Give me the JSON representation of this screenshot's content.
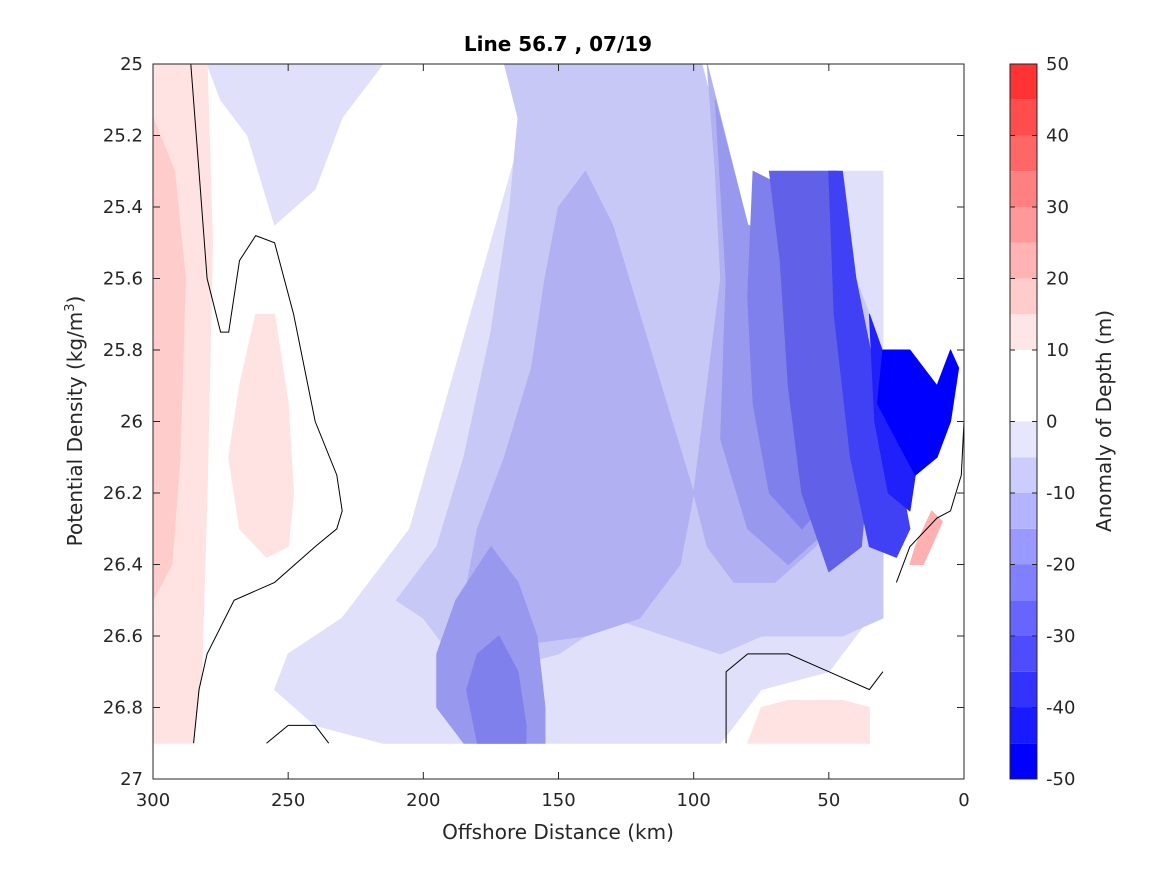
{
  "chart_data": {
    "type": "heatmap",
    "subtype": "filled-contour",
    "title": "Line 56.7 , 07/19",
    "xlabel": "Offshore Distance (km)",
    "ylabel_main": "Potential Density (kg/m",
    "ylabel_sup": "3",
    "ylabel_end": ")",
    "colorbar_label": "Anomaly of Depth (m)",
    "xlim": [
      300,
      0
    ],
    "x_reversed": true,
    "ylim": [
      27,
      25
    ],
    "y_reversed": true,
    "xticks": [
      300,
      250,
      200,
      150,
      100,
      50,
      0
    ],
    "yticks": [
      25,
      25.2,
      25.4,
      25.6,
      25.8,
      26,
      26.2,
      26.4,
      26.6,
      26.8,
      27
    ],
    "ytick_labels": [
      "25",
      "25.2",
      "25.4",
      "25.6",
      "25.8",
      "26",
      "26.2",
      "26.4",
      "26.6",
      "26.8",
      "27"
    ],
    "colorbar_ticks": [
      50,
      40,
      30,
      20,
      10,
      0,
      -10,
      -20,
      -30,
      -40,
      -50
    ],
    "colorbar_levels": [
      -50,
      -45,
      -40,
      -35,
      -30,
      -25,
      -20,
      -15,
      -10,
      -5,
      0,
      5,
      10,
      15,
      20,
      25,
      30,
      35,
      40,
      45,
      50
    ],
    "colorbar_colors": [
      "#0000ff",
      "#1a1aff",
      "#3333ff",
      "#4d4dff",
      "#6666ff",
      "#8080ff",
      "#9999ff",
      "#b3b3ff",
      "#ccccff",
      "#e6e6ff",
      "#ffffff",
      "#ffffff",
      "#ffe6e6",
      "#ffcccc",
      "#ffb3b3",
      "#ff9999",
      "#ff8080",
      "#ff6666",
      "#ff4d4d",
      "#ff3333",
      "#ff1a1a"
    ],
    "regions": [
      {
        "level": -5,
        "color": "#e0e0fb",
        "points": [
          [
            255,
            25
          ],
          [
            170,
            25
          ],
          [
            160,
            25.1
          ],
          [
            175,
            25.5
          ],
          [
            190,
            25.9
          ],
          [
            205,
            26.3
          ],
          [
            230,
            26.55
          ],
          [
            250,
            26.65
          ],
          [
            255,
            26.75
          ],
          [
            240,
            26.85
          ],
          [
            215,
            26.9
          ],
          [
            190,
            26.9
          ],
          [
            90,
            26.9
          ],
          [
            75,
            26.75
          ],
          [
            50,
            26.7
          ],
          [
            40,
            26.6
          ],
          [
            30,
            26.5
          ],
          [
            30,
            25.3
          ],
          [
            45,
            25.3
          ],
          [
            60,
            25.3
          ],
          [
            80,
            25.5
          ],
          [
            97,
            25
          ],
          [
            215,
            25
          ],
          [
            230,
            25.15
          ],
          [
            240,
            25.35
          ],
          [
            255,
            25.45
          ],
          [
            265,
            25.2
          ],
          [
            275,
            25.1
          ],
          [
            280,
            25
          ]
        ]
      },
      {
        "level": -10,
        "color": "#c8c8f6",
        "points": [
          [
            170,
            25
          ],
          [
            97,
            25
          ],
          [
            80,
            25.5
          ],
          [
            60,
            25.3
          ],
          [
            40,
            25.6
          ],
          [
            30,
            25.8
          ],
          [
            30,
            26.55
          ],
          [
            45,
            26.6
          ],
          [
            60,
            26.6
          ],
          [
            75,
            26.6
          ],
          [
            90,
            26.65
          ],
          [
            110,
            26.6
          ],
          [
            130,
            26.55
          ],
          [
            150,
            26.65
          ],
          [
            175,
            26.7
          ],
          [
            190,
            26.65
          ],
          [
            200,
            26.55
          ],
          [
            210,
            26.5
          ],
          [
            195,
            26.35
          ],
          [
            185,
            26.1
          ],
          [
            175,
            25.75
          ],
          [
            168,
            25.4
          ],
          [
            165,
            25.15
          ]
        ]
      },
      {
        "level": -15,
        "color": "#b0b0f2",
        "points": [
          [
            140,
            25.3
          ],
          [
            130,
            25.45
          ],
          [
            120,
            25.7
          ],
          [
            110,
            25.95
          ],
          [
            100,
            26.2
          ],
          [
            105,
            26.4
          ],
          [
            120,
            26.55
          ],
          [
            140,
            26.6
          ],
          [
            160,
            26.62
          ],
          [
            175,
            26.6
          ],
          [
            185,
            26.5
          ],
          [
            180,
            26.3
          ],
          [
            170,
            26.1
          ],
          [
            160,
            25.85
          ],
          [
            155,
            25.6
          ],
          [
            150,
            25.4
          ]
        ]
      },
      {
        "level": -20,
        "color": "#9898ee",
        "points": [
          [
            175,
            26.35
          ],
          [
            165,
            26.45
          ],
          [
            158,
            26.6
          ],
          [
            155,
            26.8
          ],
          [
            155,
            26.9
          ],
          [
            185,
            26.9
          ],
          [
            195,
            26.8
          ],
          [
            195,
            26.65
          ],
          [
            188,
            26.5
          ]
        ]
      },
      {
        "level": -25,
        "color": "#8080ec",
        "points": [
          [
            172,
            26.6
          ],
          [
            165,
            26.7
          ],
          [
            162,
            26.85
          ],
          [
            162,
            26.9
          ],
          [
            180,
            26.9
          ],
          [
            184,
            26.75
          ],
          [
            180,
            26.65
          ]
        ]
      },
      {
        "level": -15,
        "color": "#b0b0f2",
        "points": [
          [
            95,
            25
          ],
          [
            80,
            25.45
          ],
          [
            70,
            25.55
          ],
          [
            55,
            25.6
          ],
          [
            45,
            25.8
          ],
          [
            40,
            26
          ],
          [
            45,
            26.2
          ],
          [
            55,
            26.35
          ],
          [
            70,
            26.45
          ],
          [
            85,
            26.45
          ],
          [
            95,
            26.35
          ],
          [
            100,
            26.2
          ],
          [
            95,
            25.9
          ],
          [
            90,
            25.6
          ],
          [
            92,
            25.3
          ]
        ]
      },
      {
        "level": -20,
        "color": "#9898ee",
        "points": [
          [
            92,
            25.1
          ],
          [
            80,
            25.45
          ],
          [
            65,
            25.5
          ],
          [
            50,
            25.55
          ],
          [
            45,
            25.8
          ],
          [
            42,
            26.05
          ],
          [
            50,
            26.3
          ],
          [
            65,
            26.4
          ],
          [
            80,
            26.3
          ],
          [
            90,
            26.05
          ],
          [
            88,
            25.6
          ]
        ]
      },
      {
        "level": -25,
        "color": "#8080ec",
        "points": [
          [
            78,
            25.3
          ],
          [
            65,
            25.35
          ],
          [
            55,
            25.35
          ],
          [
            48,
            25.6
          ],
          [
            45,
            25.9
          ],
          [
            48,
            26.2
          ],
          [
            60,
            26.3
          ],
          [
            72,
            26.2
          ],
          [
            78,
            25.95
          ],
          [
            80,
            25.65
          ]
        ]
      },
      {
        "level": -30,
        "color": "#6060e8",
        "points": [
          [
            72,
            25.3
          ],
          [
            55,
            25.3
          ],
          [
            47,
            25.3
          ],
          [
            45,
            25.5
          ],
          [
            40,
            25.8
          ],
          [
            35,
            26.1
          ],
          [
            38,
            26.35
          ],
          [
            50,
            26.42
          ],
          [
            60,
            26.2
          ],
          [
            65,
            25.9
          ],
          [
            68,
            25.55
          ]
        ]
      },
      {
        "level": -35,
        "color": "#4040f5",
        "points": [
          [
            50,
            25.3
          ],
          [
            45,
            25.3
          ],
          [
            40,
            25.6
          ],
          [
            32,
            25.9
          ],
          [
            25,
            26.1
          ],
          [
            20,
            26.3
          ],
          [
            25,
            26.38
          ],
          [
            35,
            26.35
          ],
          [
            42,
            26.1
          ],
          [
            48,
            25.7
          ]
        ]
      },
      {
        "level": -40,
        "color": "#2020fa",
        "points": [
          [
            35,
            25.7
          ],
          [
            28,
            25.85
          ],
          [
            22,
            26.0
          ],
          [
            18,
            26.15
          ],
          [
            20,
            26.25
          ],
          [
            28,
            26.2
          ],
          [
            33,
            26.0
          ]
        ]
      },
      {
        "level": -45,
        "color": "#0000ff",
        "points": [
          [
            30,
            25.8
          ],
          [
            20,
            25.8
          ],
          [
            10,
            25.9
          ],
          [
            5,
            25.8
          ],
          [
            2,
            25.85
          ],
          [
            5,
            26.0
          ],
          [
            10,
            26.1
          ],
          [
            18,
            26.15
          ],
          [
            25,
            26.05
          ],
          [
            32,
            25.95
          ]
        ]
      },
      {
        "level": 5,
        "color": "#ffe3e3",
        "points": [
          [
            300,
            25
          ],
          [
            300,
            26.9
          ],
          [
            285,
            26.9
          ],
          [
            282,
            26.7
          ],
          [
            280,
            26.2
          ],
          [
            278,
            25.5
          ],
          [
            280,
            25
          ]
        ]
      },
      {
        "level": 10,
        "color": "#ffcccc",
        "points": [
          [
            300,
            25.15
          ],
          [
            300,
            26.5
          ],
          [
            293,
            26.4
          ],
          [
            290,
            26.1
          ],
          [
            288,
            25.6
          ],
          [
            292,
            25.3
          ]
        ]
      },
      {
        "level": 5,
        "color": "#ffe3e3",
        "points": [
          [
            262,
            25.7
          ],
          [
            255,
            25.7
          ],
          [
            250,
            25.95
          ],
          [
            248,
            26.2
          ],
          [
            250,
            26.35
          ],
          [
            258,
            26.38
          ],
          [
            268,
            26.3
          ],
          [
            272,
            26.1
          ],
          [
            268,
            25.9
          ]
        ]
      },
      {
        "level": 5,
        "color": "#ffe3e3",
        "points": [
          [
            80,
            26.9
          ],
          [
            75,
            26.8
          ],
          [
            65,
            26.78
          ],
          [
            45,
            26.78
          ],
          [
            35,
            26.8
          ],
          [
            35,
            26.9
          ]
        ]
      },
      {
        "level": 15,
        "color": "#ffb0b0",
        "points": [
          [
            20,
            26.4
          ],
          [
            15,
            26.4
          ],
          [
            8,
            26.28
          ],
          [
            12,
            26.25
          ],
          [
            18,
            26.35
          ]
        ]
      }
    ],
    "zero_contours": [
      [
        [
          286,
          25
        ],
        [
          283,
          25.3
        ],
        [
          280,
          25.6
        ],
        [
          275,
          25.75
        ],
        [
          272,
          25.75
        ],
        [
          268,
          25.55
        ],
        [
          262,
          25.48
        ],
        [
          255,
          25.5
        ],
        [
          248,
          25.7
        ],
        [
          240,
          26.0
        ],
        [
          232,
          26.15
        ],
        [
          230,
          26.25
        ],
        [
          232,
          26.3
        ],
        [
          240,
          26.35
        ],
        [
          255,
          26.45
        ],
        [
          270,
          26.5
        ],
        [
          280,
          26.65
        ],
        [
          283,
          26.75
        ],
        [
          285,
          26.9
        ]
      ],
      [
        [
          258,
          26.9
        ],
        [
          250,
          26.85
        ],
        [
          240,
          26.85
        ],
        [
          235,
          26.9
        ]
      ],
      [
        [
          88,
          26.9
        ],
        [
          88,
          26.7
        ],
        [
          80,
          26.65
        ],
        [
          65,
          26.65
        ],
        [
          50,
          26.7
        ],
        [
          35,
          26.75
        ],
        [
          30,
          26.7
        ]
      ],
      [
        [
          0,
          26
        ],
        [
          1,
          26.15
        ],
        [
          5,
          26.25
        ],
        [
          10,
          26.27
        ],
        [
          20,
          26.35
        ],
        [
          25,
          26.45
        ]
      ]
    ]
  }
}
